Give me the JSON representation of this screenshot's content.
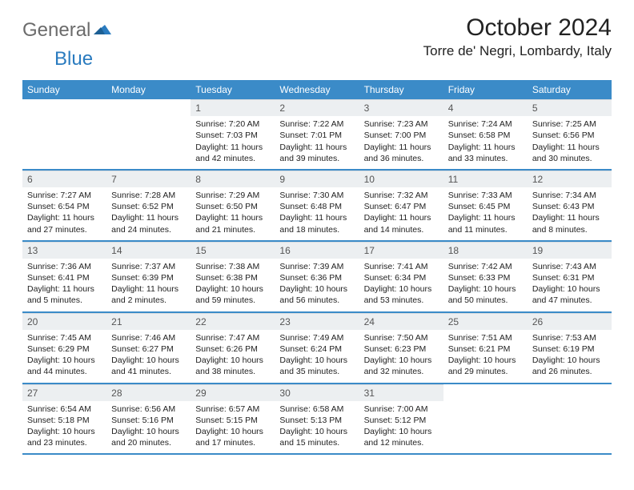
{
  "brand": {
    "word1": "General",
    "word2": "Blue"
  },
  "title": "October 2024",
  "location": "Torre de' Negri, Lombardy, Italy",
  "colors": {
    "header_bg": "#3b8bc8",
    "header_text": "#ffffff",
    "daynum_bg": "#eceff1",
    "border": "#3b8bc8",
    "logo_gray": "#6b6b6b",
    "logo_blue": "#2a7bbf"
  },
  "weekdays": [
    "Sunday",
    "Monday",
    "Tuesday",
    "Wednesday",
    "Thursday",
    "Friday",
    "Saturday"
  ],
  "weeks": [
    [
      null,
      null,
      {
        "n": "1",
        "sr": "7:20 AM",
        "ss": "7:03 PM",
        "dl": "11 hours and 42 minutes."
      },
      {
        "n": "2",
        "sr": "7:22 AM",
        "ss": "7:01 PM",
        "dl": "11 hours and 39 minutes."
      },
      {
        "n": "3",
        "sr": "7:23 AM",
        "ss": "7:00 PM",
        "dl": "11 hours and 36 minutes."
      },
      {
        "n": "4",
        "sr": "7:24 AM",
        "ss": "6:58 PM",
        "dl": "11 hours and 33 minutes."
      },
      {
        "n": "5",
        "sr": "7:25 AM",
        "ss": "6:56 PM",
        "dl": "11 hours and 30 minutes."
      }
    ],
    [
      {
        "n": "6",
        "sr": "7:27 AM",
        "ss": "6:54 PM",
        "dl": "11 hours and 27 minutes."
      },
      {
        "n": "7",
        "sr": "7:28 AM",
        "ss": "6:52 PM",
        "dl": "11 hours and 24 minutes."
      },
      {
        "n": "8",
        "sr": "7:29 AM",
        "ss": "6:50 PM",
        "dl": "11 hours and 21 minutes."
      },
      {
        "n": "9",
        "sr": "7:30 AM",
        "ss": "6:48 PM",
        "dl": "11 hours and 18 minutes."
      },
      {
        "n": "10",
        "sr": "7:32 AM",
        "ss": "6:47 PM",
        "dl": "11 hours and 14 minutes."
      },
      {
        "n": "11",
        "sr": "7:33 AM",
        "ss": "6:45 PM",
        "dl": "11 hours and 11 minutes."
      },
      {
        "n": "12",
        "sr": "7:34 AM",
        "ss": "6:43 PM",
        "dl": "11 hours and 8 minutes."
      }
    ],
    [
      {
        "n": "13",
        "sr": "7:36 AM",
        "ss": "6:41 PM",
        "dl": "11 hours and 5 minutes."
      },
      {
        "n": "14",
        "sr": "7:37 AM",
        "ss": "6:39 PM",
        "dl": "11 hours and 2 minutes."
      },
      {
        "n": "15",
        "sr": "7:38 AM",
        "ss": "6:38 PM",
        "dl": "10 hours and 59 minutes."
      },
      {
        "n": "16",
        "sr": "7:39 AM",
        "ss": "6:36 PM",
        "dl": "10 hours and 56 minutes."
      },
      {
        "n": "17",
        "sr": "7:41 AM",
        "ss": "6:34 PM",
        "dl": "10 hours and 53 minutes."
      },
      {
        "n": "18",
        "sr": "7:42 AM",
        "ss": "6:33 PM",
        "dl": "10 hours and 50 minutes."
      },
      {
        "n": "19",
        "sr": "7:43 AM",
        "ss": "6:31 PM",
        "dl": "10 hours and 47 minutes."
      }
    ],
    [
      {
        "n": "20",
        "sr": "7:45 AM",
        "ss": "6:29 PM",
        "dl": "10 hours and 44 minutes."
      },
      {
        "n": "21",
        "sr": "7:46 AM",
        "ss": "6:27 PM",
        "dl": "10 hours and 41 minutes."
      },
      {
        "n": "22",
        "sr": "7:47 AM",
        "ss": "6:26 PM",
        "dl": "10 hours and 38 minutes."
      },
      {
        "n": "23",
        "sr": "7:49 AM",
        "ss": "6:24 PM",
        "dl": "10 hours and 35 minutes."
      },
      {
        "n": "24",
        "sr": "7:50 AM",
        "ss": "6:23 PM",
        "dl": "10 hours and 32 minutes."
      },
      {
        "n": "25",
        "sr": "7:51 AM",
        "ss": "6:21 PM",
        "dl": "10 hours and 29 minutes."
      },
      {
        "n": "26",
        "sr": "7:53 AM",
        "ss": "6:19 PM",
        "dl": "10 hours and 26 minutes."
      }
    ],
    [
      {
        "n": "27",
        "sr": "6:54 AM",
        "ss": "5:18 PM",
        "dl": "10 hours and 23 minutes."
      },
      {
        "n": "28",
        "sr": "6:56 AM",
        "ss": "5:16 PM",
        "dl": "10 hours and 20 minutes."
      },
      {
        "n": "29",
        "sr": "6:57 AM",
        "ss": "5:15 PM",
        "dl": "10 hours and 17 minutes."
      },
      {
        "n": "30",
        "sr": "6:58 AM",
        "ss": "5:13 PM",
        "dl": "10 hours and 15 minutes."
      },
      {
        "n": "31",
        "sr": "7:00 AM",
        "ss": "5:12 PM",
        "dl": "10 hours and 12 minutes."
      },
      null,
      null
    ]
  ],
  "labels": {
    "sunrise": "Sunrise:",
    "sunset": "Sunset:",
    "daylight": "Daylight:"
  }
}
